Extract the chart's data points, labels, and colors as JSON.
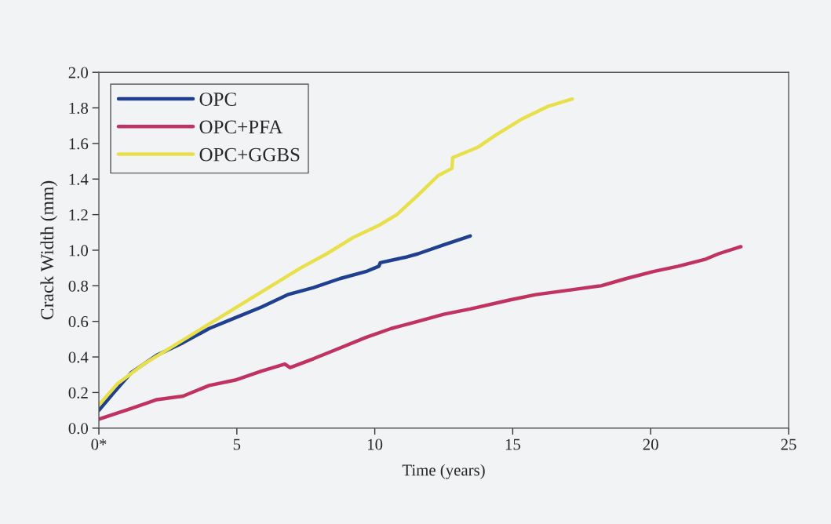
{
  "chart_data": {
    "type": "line",
    "xlabel": "Time (years)",
    "ylabel": "Crack Width (mm)",
    "xlim": [
      0,
      25
    ],
    "xticks": [
      {
        "value": 0,
        "label": "0*"
      },
      5,
      10,
      15,
      20,
      25
    ],
    "ylim": [
      0,
      2
    ],
    "yticks": [
      {
        "value": 0,
        "label": "0.0"
      },
      {
        "value": 0.2,
        "label": "0.2"
      },
      {
        "value": 0.4,
        "label": "0.4"
      },
      {
        "value": 0.6,
        "label": "0.6"
      },
      {
        "value": 0.8,
        "label": "0.8"
      },
      {
        "value": 1.0,
        "label": "1.0"
      },
      {
        "value": 1.2,
        "label": "1.2"
      },
      {
        "value": 1.4,
        "label": "1.4"
      },
      {
        "value": 1.6,
        "label": "1.6"
      },
      {
        "value": 1.8,
        "label": "1.8"
      },
      {
        "value": 2.0,
        "label": "2.0"
      }
    ],
    "grid": false,
    "legend": "top left",
    "marker": "none",
    "line_style": "solid",
    "series": [
      {
        "name": "OPC",
        "color": "#1f3f8f",
        "x": [
          0,
          0.49,
          1.16,
          2.1,
          3.05,
          4.0,
          4.94,
          5.89,
          6.84,
          7.78,
          8.73,
          9.68,
          10.15,
          10.2,
          11.1,
          11.57,
          12.5,
          13.46
        ],
        "values": [
          0.1,
          0.19,
          0.31,
          0.41,
          0.48,
          0.56,
          0.62,
          0.68,
          0.75,
          0.79,
          0.84,
          0.88,
          0.91,
          0.93,
          0.96,
          0.98,
          1.03,
          1.08
        ]
      },
      {
        "name": "OPC+PFA",
        "color": "#c0325f",
        "x": [
          0,
          1.16,
          2.1,
          3.05,
          4.0,
          4.94,
          5.89,
          6.74,
          6.93,
          7.78,
          8.73,
          9.68,
          10.6,
          11.57,
          12.5,
          13.46,
          14.88,
          15.83,
          17.25,
          18.2,
          19.1,
          20.1,
          21.0,
          22.0,
          22.46,
          23.27
        ],
        "values": [
          0.05,
          0.11,
          0.16,
          0.18,
          0.24,
          0.27,
          0.32,
          0.36,
          0.34,
          0.39,
          0.45,
          0.51,
          0.56,
          0.6,
          0.64,
          0.67,
          0.72,
          0.75,
          0.78,
          0.8,
          0.84,
          0.88,
          0.91,
          0.95,
          0.98,
          1.02
        ]
      },
      {
        "name": "OPC+GGBS",
        "color": "#e8e04a",
        "x": [
          0,
          0.68,
          1.63,
          2.58,
          3.52,
          4.47,
          5.42,
          6.36,
          7.31,
          8.26,
          9.2,
          10.15,
          10.8,
          11.57,
          12.3,
          12.8,
          12.82,
          13.75,
          14.41,
          15.36,
          16.3,
          17.16
        ],
        "values": [
          0.13,
          0.25,
          0.36,
          0.45,
          0.54,
          0.63,
          0.72,
          0.81,
          0.9,
          0.98,
          1.07,
          1.14,
          1.2,
          1.31,
          1.42,
          1.46,
          1.52,
          1.58,
          1.65,
          1.74,
          1.81,
          1.85
        ]
      }
    ]
  }
}
